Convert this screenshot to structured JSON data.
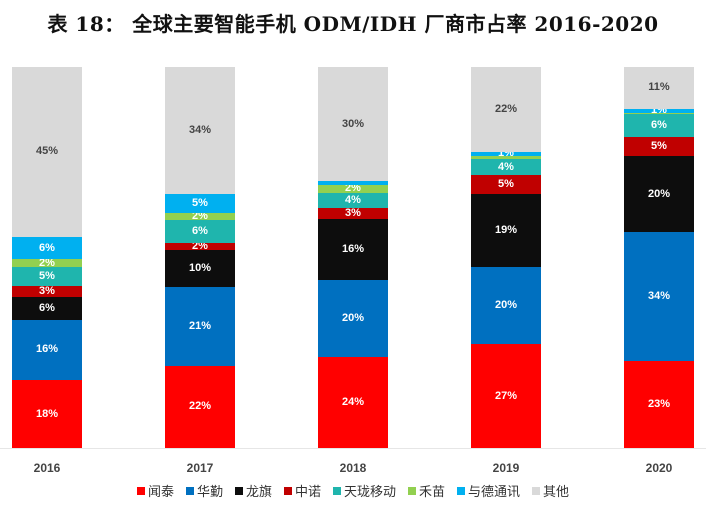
{
  "title": "表 18：  全球主要智能手机 ODM/IDH 厂商市占率 2016-2020",
  "series_meta": [
    {
      "name": "闻泰",
      "color": "#ff0000"
    },
    {
      "name": "华勤",
      "color": "#0070c0"
    },
    {
      "name": "龙旗",
      "color": "#0d0d0d"
    },
    {
      "name": "中诺",
      "color": "#c00000"
    },
    {
      "name": "天珑移动",
      "color": "#1fb5ad"
    },
    {
      "name": "禾苗",
      "color": "#92d050"
    },
    {
      "name": "与德通讯",
      "color": "#00b0f0"
    },
    {
      "name": "其他",
      "color": "#d9d9d9"
    }
  ],
  "bars": [
    {
      "year": "2016",
      "labels": [
        "18%",
        "16%",
        "6%",
        "3%",
        "5%",
        "2%",
        "6%",
        "45%"
      ]
    },
    {
      "year": "2017",
      "labels": [
        "22%",
        "21%",
        "10%",
        "2%",
        "6%",
        "2%",
        "5%",
        "34%"
      ]
    },
    {
      "year": "2018",
      "labels": [
        "24%",
        "20%",
        "16%",
        "3%",
        "4%",
        "2%",
        "",
        "30%"
      ]
    },
    {
      "year": "2019",
      "labels": [
        "27%",
        "20%",
        "19%",
        "5%",
        "4%",
        "",
        "1%",
        "22%"
      ]
    },
    {
      "year": "2020",
      "labels": [
        "23%",
        "34%",
        "20%",
        "5%",
        "6%",
        "",
        "1%",
        "11%"
      ]
    }
  ],
  "chart_data": {
    "type": "bar",
    "stacked": true,
    "title": "表 18：  全球主要智能手机 ODM/IDH 厂商市占率 2016-2020",
    "xlabel": "",
    "ylabel": "",
    "ylim": [
      0,
      100
    ],
    "grid": false,
    "legend_position": "bottom",
    "categories": [
      "2016",
      "2017",
      "2018",
      "2019",
      "2020"
    ],
    "series": [
      {
        "name": "闻泰",
        "values": [
          18,
          22,
          24,
          27,
          23
        ]
      },
      {
        "name": "华勤",
        "values": [
          16,
          21,
          20,
          20,
          34
        ]
      },
      {
        "name": "龙旗",
        "values": [
          6,
          10,
          16,
          19,
          20
        ]
      },
      {
        "name": "中诺",
        "values": [
          3,
          2,
          3,
          5,
          5
        ]
      },
      {
        "name": "天珑移动",
        "values": [
          5,
          6,
          4,
          4,
          6
        ]
      },
      {
        "name": "禾苗",
        "values": [
          2,
          2,
          2,
          1,
          0.5
        ]
      },
      {
        "name": "与德通讯",
        "values": [
          6,
          5,
          1,
          1,
          1
        ]
      },
      {
        "name": "其他",
        "values": [
          45,
          34,
          30,
          22,
          11
        ]
      }
    ]
  }
}
